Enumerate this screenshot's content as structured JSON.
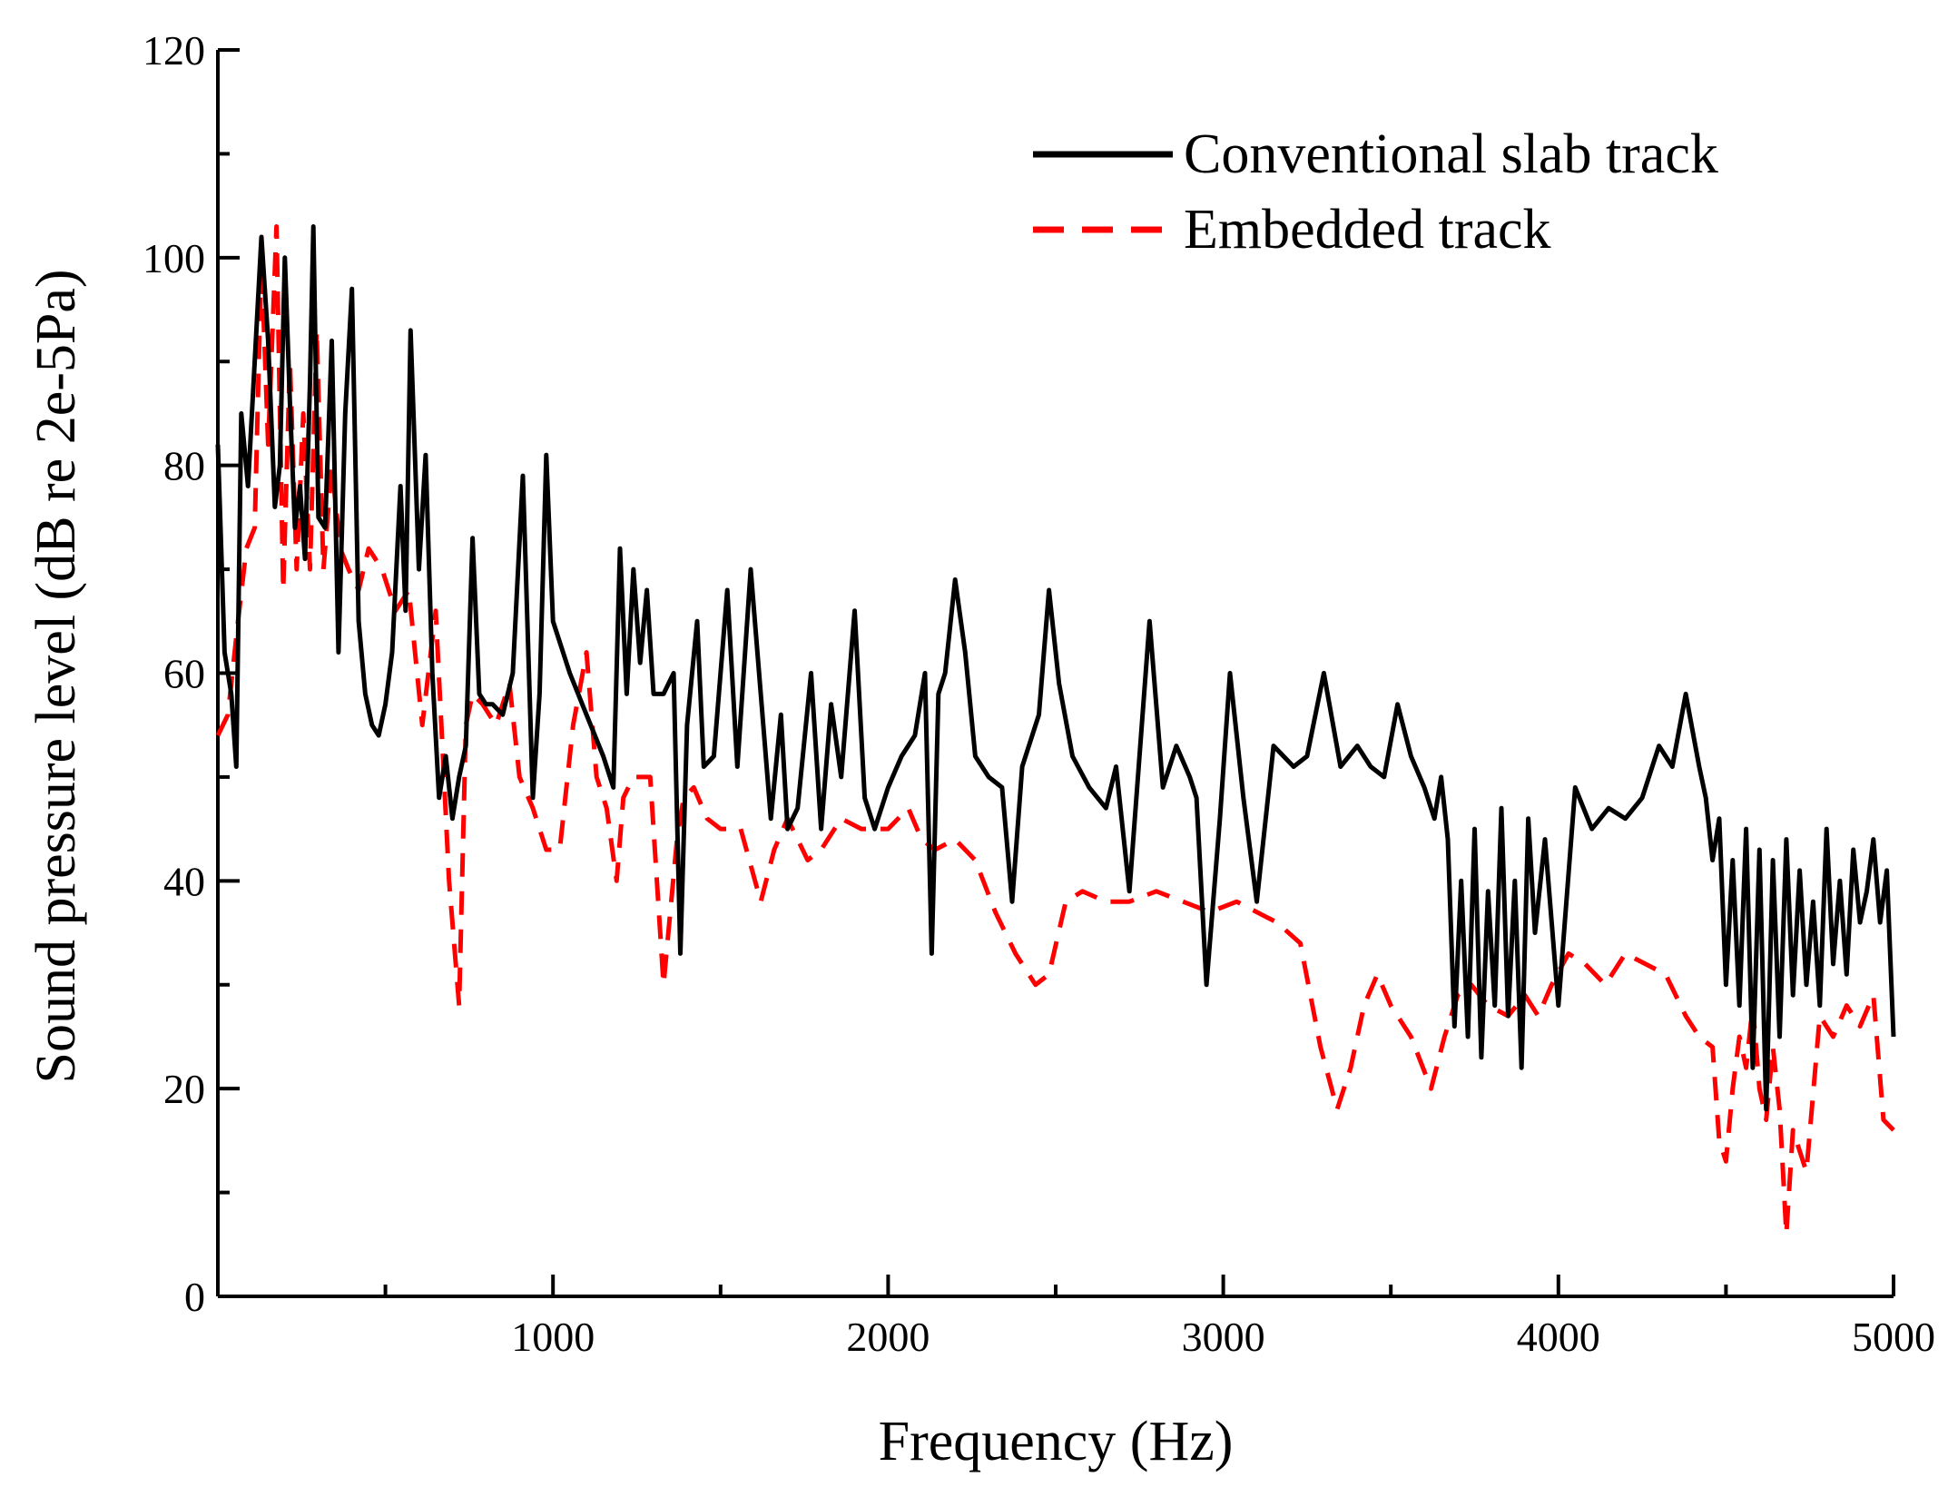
{
  "chart_data": {
    "type": "line",
    "xlabel": "Frequency (Hz)",
    "ylabel": "Sound pressure level (dB re 2e-5Pa)",
    "xlim": [
      0,
      5000
    ],
    "ylim": [
      0,
      120
    ],
    "x_ticks": [
      1000,
      2000,
      3000,
      4000,
      5000
    ],
    "x_tick_labels": [
      "1000",
      "2000",
      "3000",
      "4000",
      "5000"
    ],
    "y_ticks": [
      0,
      20,
      40,
      60,
      80,
      100,
      120
    ],
    "y_tick_labels": [
      "0",
      "20",
      "40",
      "60",
      "80",
      "100",
      "120"
    ],
    "grid": false,
    "legend_position": "top-right",
    "series": [
      {
        "name": "Conventional slab track",
        "color": "#000000",
        "style": "solid",
        "x": [
          0,
          20,
          40,
          55,
          70,
          90,
          110,
          130,
          150,
          170,
          185,
          200,
          215,
          230,
          245,
          260,
          275,
          285,
          300,
          320,
          340,
          360,
          380,
          400,
          420,
          440,
          460,
          480,
          500,
          520,
          545,
          560,
          575,
          600,
          620,
          640,
          660,
          680,
          700,
          720,
          740,
          760,
          780,
          800,
          820,
          850,
          880,
          910,
          940,
          960,
          980,
          1000,
          1020,
          1050,
          1100,
          1150,
          1180,
          1200,
          1220,
          1240,
          1260,
          1280,
          1300,
          1330,
          1360,
          1380,
          1400,
          1430,
          1450,
          1480,
          1520,
          1550,
          1590,
          1620,
          1650,
          1680,
          1700,
          1730,
          1770,
          1800,
          1830,
          1860,
          1900,
          1930,
          1960,
          2000,
          2040,
          2080,
          2110,
          2130,
          2150,
          2170,
          2200,
          2230,
          2260,
          2300,
          2340,
          2370,
          2400,
          2450,
          2480,
          2510,
          2550,
          2600,
          2650,
          2680,
          2720,
          2750,
          2780,
          2820,
          2860,
          2900,
          2920,
          2950,
          2990,
          3020,
          3060,
          3100,
          3150,
          3210,
          3250,
          3300,
          3350,
          3400,
          3440,
          3480,
          3520,
          3560,
          3600,
          3630,
          3650,
          3670,
          3690,
          3710,
          3730,
          3750,
          3770,
          3790,
          3810,
          3830,
          3850,
          3870,
          3890,
          3910,
          3930,
          3960,
          4000,
          4050,
          4100,
          4150,
          4200,
          4250,
          4300,
          4340,
          4380,
          4420,
          4440,
          4460,
          4480,
          4500,
          4520,
          4540,
          4560,
          4580,
          4600,
          4620,
          4640,
          4660,
          4680,
          4700,
          4720,
          4740,
          4760,
          4780,
          4800,
          4820,
          4840,
          4860,
          4880,
          4900,
          4920,
          4940,
          4960,
          4980,
          5000
        ],
        "y": [
          82,
          62,
          58,
          51,
          85,
          78,
          90,
          102,
          92,
          76,
          80,
          100,
          86,
          74,
          78,
          71,
          88,
          103,
          75,
          74,
          92,
          62,
          85,
          97,
          65,
          58,
          55,
          54,
          57,
          62,
          78,
          66,
          93,
          70,
          81,
          60,
          48,
          52,
          46,
          50,
          53,
          73,
          58,
          57,
          57,
          56,
          60,
          79,
          48,
          58,
          81,
          65,
          63,
          60,
          56,
          52,
          49,
          72,
          58,
          70,
          61,
          68,
          58,
          58,
          60,
          33,
          55,
          65,
          51,
          52,
          68,
          51,
          70,
          58,
          46,
          56,
          45,
          47,
          60,
          45,
          57,
          50,
          66,
          48,
          45,
          49,
          52,
          54,
          60,
          33,
          58,
          60,
          69,
          62,
          52,
          50,
          49,
          38,
          51,
          56,
          68,
          59,
          52,
          49,
          47,
          51,
          39,
          52,
          65,
          49,
          53,
          50,
          48,
          30,
          46,
          60,
          48,
          38,
          53,
          51,
          52,
          60,
          51,
          53,
          51,
          50,
          57,
          52,
          49,
          46,
          50,
          44,
          26,
          40,
          25,
          45,
          23,
          39,
          28,
          47,
          27,
          40,
          22,
          46,
          35,
          44,
          28,
          49,
          45,
          47,
          46,
          48,
          53,
          51,
          58,
          51,
          48,
          42,
          46,
          30,
          42,
          28,
          45,
          22,
          43,
          18,
          42,
          25,
          44,
          29,
          41,
          30,
          38,
          28,
          45,
          32,
          40,
          31,
          43,
          36,
          39,
          44,
          36,
          41,
          25
        ]
      },
      {
        "name": "Embedded track",
        "color": "#ff0000",
        "style": "dashed",
        "x": [
          0,
          30,
          60,
          85,
          110,
          130,
          150,
          175,
          195,
          215,
          235,
          255,
          275,
          295,
          315,
          340,
          365,
          390,
          420,
          450,
          490,
          530,
          570,
          610,
          650,
          690,
          720,
          740,
          760,
          790,
          830,
          870,
          900,
          940,
          980,
          1020,
          1060,
          1100,
          1130,
          1160,
          1190,
          1210,
          1240,
          1290,
          1330,
          1370,
          1390,
          1420,
          1460,
          1500,
          1560,
          1620,
          1660,
          1700,
          1760,
          1800,
          1860,
          1920,
          2000,
          2060,
          2100,
          2140,
          2200,
          2260,
          2320,
          2380,
          2440,
          2480,
          2530,
          2580,
          2650,
          2720,
          2800,
          2880,
          2960,
          3040,
          3100,
          3160,
          3230,
          3290,
          3340,
          3380,
          3420,
          3460,
          3500,
          3560,
          3620,
          3660,
          3700,
          3740,
          3790,
          3850,
          3900,
          3940,
          3980,
          4030,
          4080,
          4140,
          4200,
          4260,
          4320,
          4380,
          4420,
          4460,
          4480,
          4500,
          4520,
          4540,
          4560,
          4580,
          4600,
          4620,
          4640,
          4660,
          4680,
          4700,
          4740,
          4780,
          4820,
          4860,
          4900,
          4940,
          4970,
          5000
        ],
        "y": [
          54,
          56,
          65,
          72,
          74,
          100,
          82,
          103,
          68,
          90,
          70,
          85,
          70,
          93,
          70,
          80,
          72,
          70,
          68,
          72,
          70,
          66,
          68,
          55,
          66,
          40,
          28,
          55,
          58,
          57,
          55,
          59,
          50,
          47,
          43,
          43,
          55,
          62,
          50,
          47,
          40,
          48,
          50,
          50,
          30,
          44,
          48,
          49,
          46,
          45,
          45,
          38,
          43,
          46,
          42,
          43,
          46,
          45,
          45,
          47,
          44,
          43,
          44,
          42,
          37,
          33,
          30,
          31,
          38,
          39,
          38,
          38,
          39,
          38,
          37,
          38,
          37,
          36,
          34,
          24,
          18,
          22,
          28,
          31,
          28,
          25,
          20,
          25,
          29,
          30,
          28,
          27,
          29,
          27,
          30,
          33,
          32,
          30,
          33,
          32,
          31,
          27,
          25,
          24,
          15,
          13,
          20,
          25,
          22,
          28,
          20,
          17,
          24,
          18,
          6,
          16,
          12,
          27,
          25,
          28,
          26,
          29,
          17,
          16
        ]
      }
    ]
  }
}
